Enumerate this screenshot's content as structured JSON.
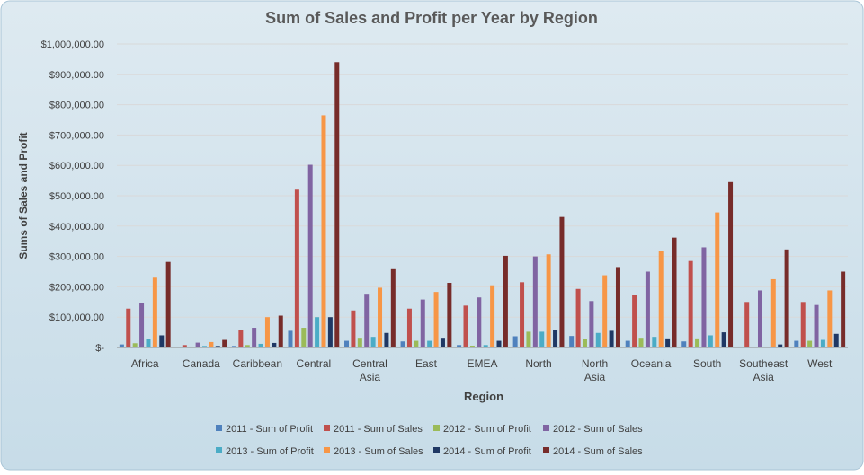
{
  "chart_data": {
    "type": "bar",
    "title": "Sum of Sales and Profit per Year by Region",
    "xlabel": "Region",
    "ylabel": "Sums of Sales and Profit",
    "ylim": [
      0,
      1000000
    ],
    "yticks": [
      0,
      100000,
      200000,
      300000,
      400000,
      500000,
      600000,
      700000,
      800000,
      900000,
      1000000
    ],
    "ytick_labels": [
      "$-",
      "$100,000.00",
      "$200,000.00",
      "$300,000.00",
      "$400,000.00",
      "$500,000.00",
      "$600,000.00",
      "$700,000.00",
      "$800,000.00",
      "$900,000.00",
      "$1,000,000.00"
    ],
    "grid": true,
    "legend_position": "bottom",
    "categories": [
      "Africa",
      "Canada",
      "Caribbean",
      "Central",
      "Central Asia",
      "East",
      "EMEA",
      "North",
      "North Asia",
      "Oceania",
      "South",
      "Southeast Asia",
      "West"
    ],
    "series": [
      {
        "name": "2011 - Sum of Profit",
        "color": "#4F81BD",
        "values": [
          10000,
          2000,
          5000,
          55000,
          22000,
          20000,
          8000,
          37000,
          38000,
          22000,
          20000,
          3000,
          22000
        ]
      },
      {
        "name": "2011 - Sum of Sales",
        "color": "#C0504D",
        "values": [
          128000,
          8000,
          58000,
          520000,
          122000,
          128000,
          138000,
          215000,
          193000,
          173000,
          285000,
          150000,
          150000
        ]
      },
      {
        "name": "2012 - Sum of Profit",
        "color": "#9BBB59",
        "values": [
          14000,
          3000,
          8000,
          65000,
          32000,
          22000,
          6000,
          52000,
          28000,
          32000,
          30000,
          2000,
          22000
        ]
      },
      {
        "name": "2012 - Sum of Sales",
        "color": "#8064A2",
        "values": [
          147000,
          16000,
          65000,
          602000,
          177000,
          158000,
          165000,
          300000,
          153000,
          250000,
          330000,
          188000,
          140000
        ]
      },
      {
        "name": "2013 - Sum of Profit",
        "color": "#4BACC6",
        "values": [
          28000,
          5000,
          12000,
          100000,
          35000,
          22000,
          8000,
          52000,
          48000,
          35000,
          40000,
          2000,
          25000
        ]
      },
      {
        "name": "2013 - Sum of Sales",
        "color": "#F79646",
        "values": [
          230000,
          18000,
          100000,
          765000,
          197000,
          183000,
          205000,
          307000,
          238000,
          318000,
          445000,
          225000,
          188000
        ]
      },
      {
        "name": "2014 - Sum of Profit",
        "color": "#1F3864",
        "values": [
          40000,
          5000,
          15000,
          100000,
          48000,
          32000,
          22000,
          58000,
          55000,
          30000,
          50000,
          10000,
          45000
        ]
      },
      {
        "name": "2014 - Sum of Sales",
        "color": "#772C2A",
        "values": [
          282000,
          25000,
          105000,
          940000,
          258000,
          213000,
          302000,
          430000,
          265000,
          362000,
          545000,
          323000,
          250000
        ]
      }
    ]
  }
}
